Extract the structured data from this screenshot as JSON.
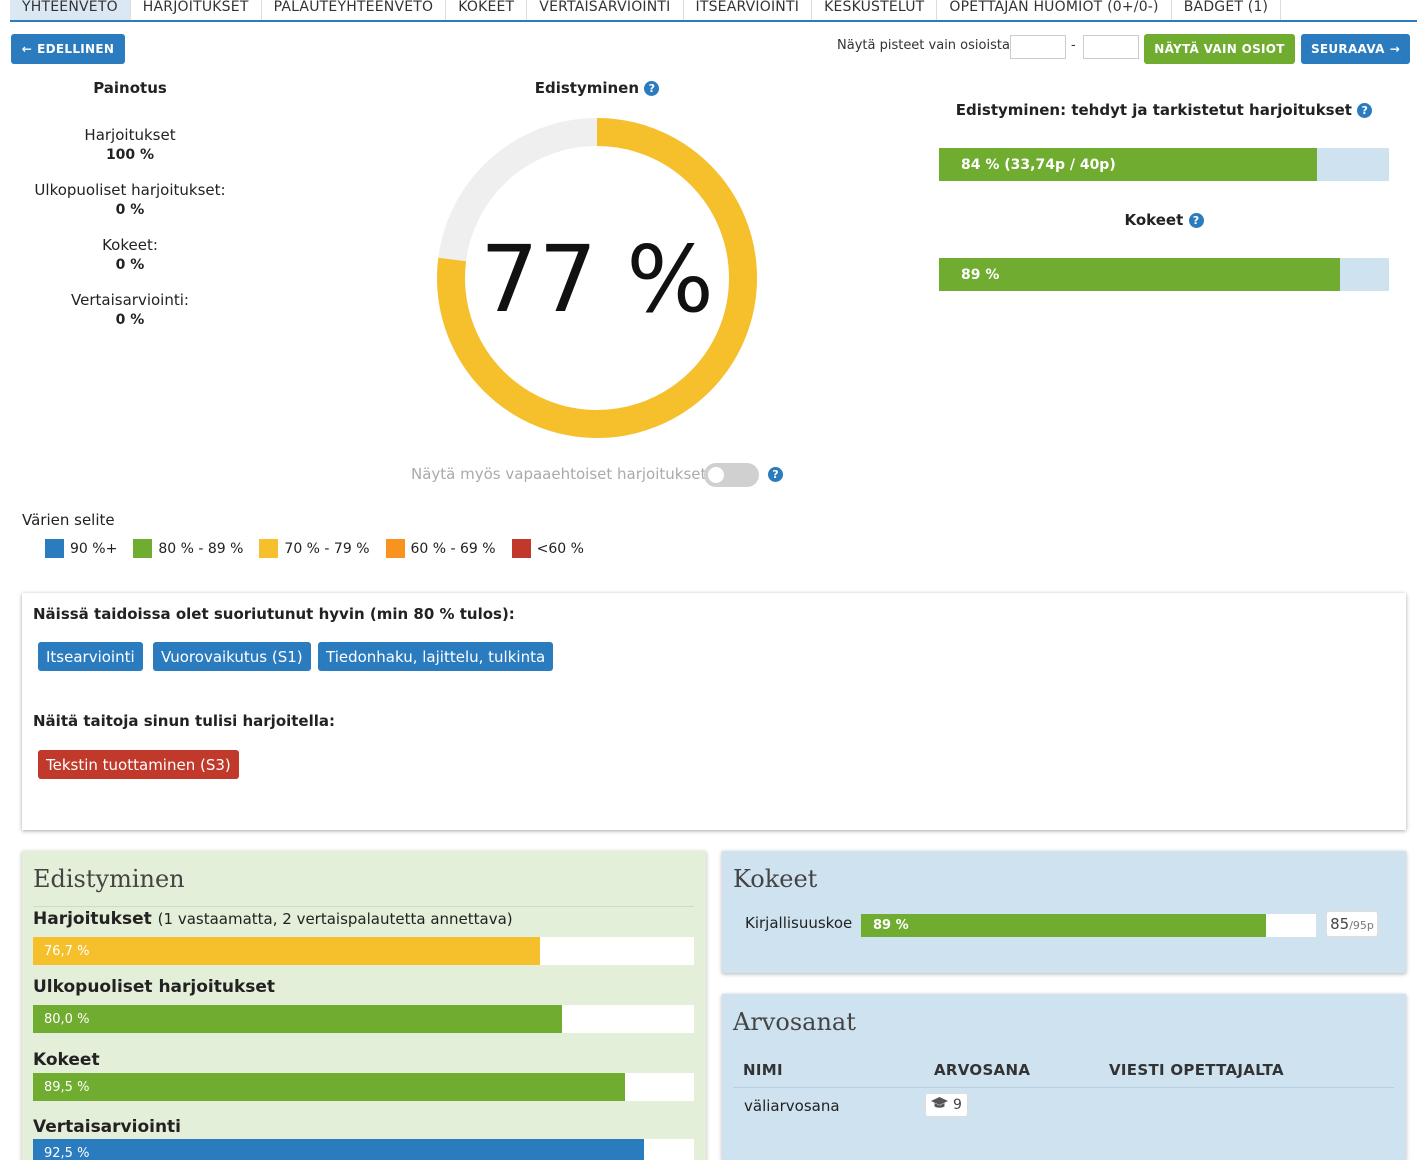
{
  "tabs": [
    {
      "label": "YHTEENVETO",
      "active": true
    },
    {
      "label": "HARJOITUKSET"
    },
    {
      "label": "PALAUTEYHTEENVETO"
    },
    {
      "label": "KOKEET"
    },
    {
      "label": "VERTAISARVIOINTI"
    },
    {
      "label": "ITSEARVIOINTI"
    },
    {
      "label": "KESKUSTELUT"
    },
    {
      "label": "OPETTAJAN HUOMIOT (0+/0-)"
    },
    {
      "label": "BADGET (1)"
    }
  ],
  "toolbar": {
    "prev_label": "EDELLINEN",
    "range_label": "Näytä pisteet vain osioista",
    "range_from": "",
    "range_to": "",
    "range_separator": "-",
    "show_sections_label": "NÄYTÄ VAIN OSIOT",
    "next_label": "SEURAAVA"
  },
  "weighting": {
    "title": "Painotus",
    "items": [
      {
        "label": "Harjoitukset",
        "value": "100 %"
      },
      {
        "label": "Ulkopuoliset harjoitukset:",
        "value": "0 %"
      },
      {
        "label": "Kokeet:",
        "value": "0 %"
      },
      {
        "label": "Vertaisarviointi:",
        "value": "0 %"
      }
    ]
  },
  "progress": {
    "title": "Edistyminen",
    "percent_text": "77 %",
    "percent": 77,
    "ring_color": "#f5c02c",
    "track_color": "#efefef",
    "toggle_label": "Näytä myös vapaaehtoiset harjoitukset",
    "toggle_on": false
  },
  "checked": {
    "title": "Edistyminen: tehdyt ja tarkistetut harjoitukset",
    "bar_text": "84 % (33,74p / 40p)",
    "percent": 84
  },
  "exams_summary": {
    "title": "Kokeet",
    "bar_text": "89 %",
    "percent": 89
  },
  "legend": {
    "title": "Värien selite",
    "items": [
      {
        "label": "90 %+",
        "color": "#2b7bbf"
      },
      {
        "label": "80 % - 89 %",
        "color": "#6fac2f"
      },
      {
        "label": "70 % - 79 %",
        "color": "#f5c02c"
      },
      {
        "label": "60 % - 69 %",
        "color": "#f7931e"
      },
      {
        "label": "<60 %",
        "color": "#c0392b"
      }
    ]
  },
  "skills": {
    "good_title": "Näissä taidoissa olet suoriutunut hyvin (min 80 % tulos):",
    "good": [
      "Itsearviointi",
      "Vuorovaikutus (S1)",
      "Tiedonhaku, lajittelu, tulkinta"
    ],
    "practice_title": "Näitä taitoja sinun tulisi harjoitella:",
    "practice": [
      "Tekstin tuottaminen (S3)"
    ]
  },
  "progress_panel": {
    "title": "Edistyminen",
    "rows": [
      {
        "label": "Harjoitukset",
        "note": "(1 vastaamatta, 2 vertaispalautetta annettava)",
        "value_text": "76,7 %",
        "percent": 76.7,
        "color": "#f5c02c"
      },
      {
        "label": "Ulkopuoliset harjoitukset",
        "note": "",
        "value_text": "80,0 %",
        "percent": 80.0,
        "color": "#6fac2f"
      },
      {
        "label": "Kokeet",
        "note": "",
        "value_text": "89,5 %",
        "percent": 89.5,
        "color": "#6fac2f"
      },
      {
        "label": "Vertaisarviointi",
        "note": "",
        "value_text": "92,5 %",
        "percent": 92.5,
        "color": "#2b7bbf"
      }
    ]
  },
  "exams_panel": {
    "title": "Kokeet",
    "exam_name": "Kirjallisuuskoe",
    "bar_text": "89 %",
    "percent": 89,
    "score": "85",
    "max": "/95p"
  },
  "grades_panel": {
    "title": "Arvosanat",
    "headers": [
      "NIMI",
      "ARVOSANA",
      "VIESTI OPETTAJALTA"
    ],
    "rows": [
      {
        "name": "väliarvosana",
        "grade": "9",
        "message": ""
      }
    ]
  },
  "icons": {
    "prev": "arrow-left-icon",
    "next": "arrow-right-icon",
    "help": "question-circle-icon",
    "grade": "graduation-cap-icon"
  }
}
